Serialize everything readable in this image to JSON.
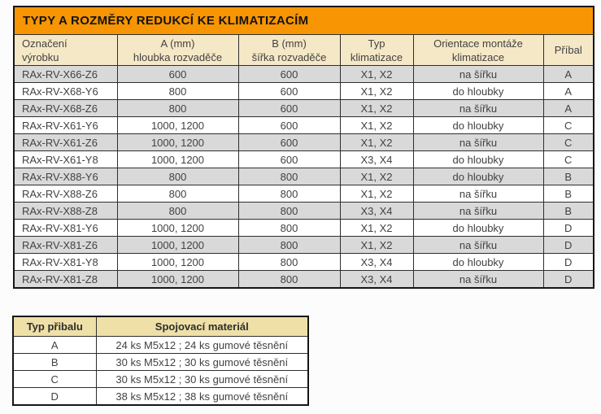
{
  "colors": {
    "title_bg": "#f79502",
    "header_bg": "#f5e8c6",
    "accessory_header_bg": "#efe0a8",
    "shaded_row_bg": "#d9d9d9",
    "border": "#2e2e2e"
  },
  "main_table": {
    "title": "TYPY A ROZMĚRY REDUKCÍ KE KLIMATIZACÍM",
    "columns": [
      {
        "line1": "Označení",
        "line2": "výrobku"
      },
      {
        "line1": "A (mm)",
        "line2": "hloubka rozvaděče"
      },
      {
        "line1": "B (mm)",
        "line2": "šířka rozvaděče"
      },
      {
        "line1": "Typ",
        "line2": "klimatizace"
      },
      {
        "line1": "Orientace montáže",
        "line2": "klimatizace"
      },
      {
        "line1": "Příbal",
        "line2": ""
      }
    ],
    "rows": [
      [
        "RAx-RV-X66-Z6",
        "600",
        "600",
        "X1, X2",
        "na šířku",
        "A"
      ],
      [
        "RAx-RV-X68-Y6",
        "800",
        "600",
        "X1, X2",
        "do hloubky",
        "A"
      ],
      [
        "RAx-RV-X68-Z6",
        "800",
        "600",
        "X1, X2",
        "na šířku",
        "A"
      ],
      [
        "RAx-RV-X61-Y6",
        "1000, 1200",
        "600",
        "X1, X2",
        "do hloubky",
        "C"
      ],
      [
        "RAx-RV-X61-Z6",
        "1000, 1200",
        "600",
        "X1, X2",
        "na šířku",
        "C"
      ],
      [
        "RAx-RV-X61-Y8",
        "1000, 1200",
        "600",
        "X3, X4",
        "do hloubky",
        "C"
      ],
      [
        "RAx-RV-X88-Y6",
        "800",
        "800",
        "X1, X2",
        "do hloubky",
        "B"
      ],
      [
        "RAx-RV-X88-Z6",
        "800",
        "800",
        "X1, X2",
        "na šířku",
        "B"
      ],
      [
        "RAx-RV-X88-Z8",
        "800",
        "800",
        "X3, X4",
        "na šířku",
        "B"
      ],
      [
        "RAx-RV-X81-Y6",
        "1000, 1200",
        "800",
        "X1, X2",
        "do hloubky",
        "D"
      ],
      [
        "RAx-RV-X81-Z6",
        "1000, 1200",
        "800",
        "X1, X2",
        "na šířku",
        "D"
      ],
      [
        "RAx-RV-X81-Y8",
        "1000, 1200",
        "800",
        "X3, X4",
        "do hloubky",
        "D"
      ],
      [
        "RAx-RV-X81-Z8",
        "1000, 1200",
        "800",
        "X3, X4",
        "na šířku",
        "D"
      ]
    ]
  },
  "accessory_table": {
    "columns": [
      "Typ přibalu",
      "Spojovací materiál"
    ],
    "rows": [
      [
        "A",
        "24 ks M5x12 ; 24 ks gumové těsnění"
      ],
      [
        "B",
        "30 ks M5x12 ; 30 ks gumové těsnění"
      ],
      [
        "C",
        "30 ks M5x12 ; 30 ks gumové těsnění"
      ],
      [
        "D",
        "38 ks M5x12 ; 38 ks gumové těsnění"
      ]
    ]
  }
}
